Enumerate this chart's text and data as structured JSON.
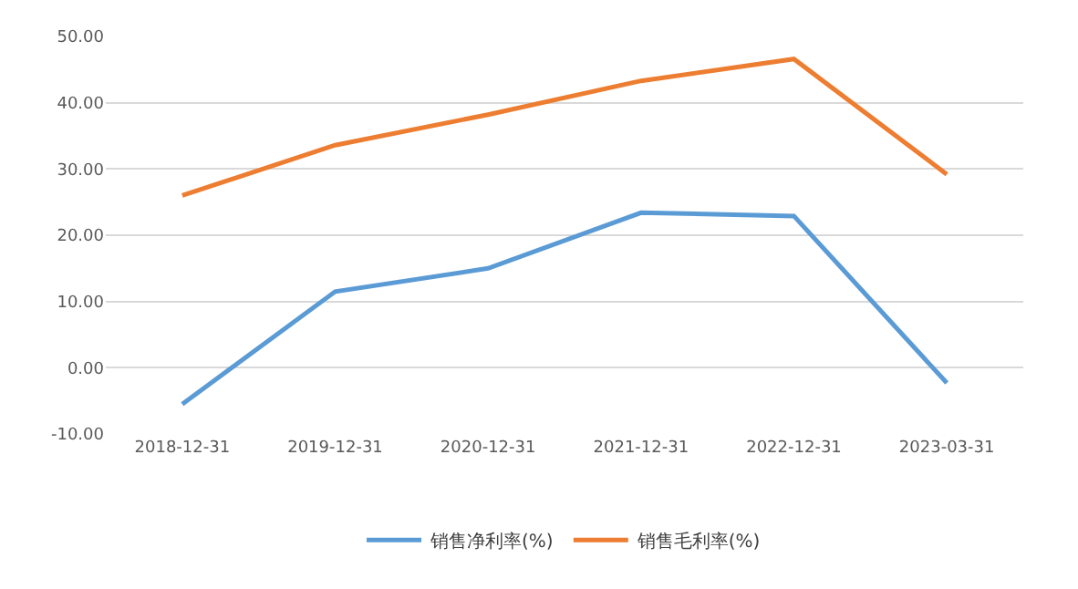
{
  "chart_data": {
    "type": "line",
    "categories": [
      "2018-12-31",
      "2019-12-31",
      "2020-12-31",
      "2021-12-31",
      "2022-12-31",
      "2023-03-31"
    ],
    "series": [
      {
        "name": "销售净利率(%)",
        "color": "#5b9bd5",
        "values": [
          -5.5,
          11.5,
          15.0,
          23.4,
          22.9,
          -2.3
        ]
      },
      {
        "name": "销售毛利率(%)",
        "color": "#ed7d31",
        "values": [
          26.0,
          33.6,
          38.2,
          43.3,
          46.6,
          29.2
        ]
      }
    ],
    "ylim": [
      -10,
      50
    ],
    "yticks": [
      {
        "value": -10,
        "label": "-10.00"
      },
      {
        "value": 0,
        "label": "0.00"
      },
      {
        "value": 10,
        "label": "10.00"
      },
      {
        "value": 20,
        "label": "20.00"
      },
      {
        "value": 30,
        "label": "30.00"
      },
      {
        "value": 40,
        "label": "40.00"
      },
      {
        "value": 50,
        "label": "50.00"
      }
    ],
    "grid": "y",
    "legend": "bottom",
    "marker": "none",
    "line_style": "solid"
  }
}
